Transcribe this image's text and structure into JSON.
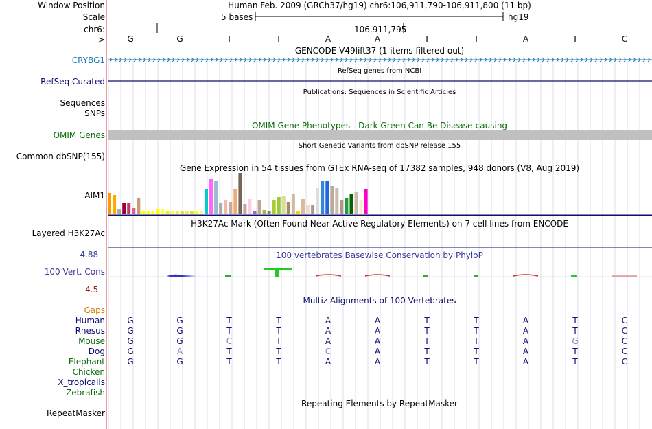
{
  "header": {
    "position_label": "Window Position",
    "assembly_position": "Human Feb. 2009 (GRCh37/hg19)   chr6:106,911,790-106,911,800 (11 bp)",
    "scale_label": "Scale",
    "scale_value": "5 bases",
    "scale_assembly": "hg19",
    "chrom_label": "chr6:",
    "chrom_coord": "106,911,795",
    "strand_label": "--->"
  },
  "bases": [
    "G",
    "G",
    "T",
    "T",
    "A",
    "A",
    "T",
    "T",
    "A",
    "T",
    "C"
  ],
  "tracks": {
    "gencode": {
      "title": "GENCODE V49lift37 (1 items filtered out)",
      "gene_label": "CRYBG1"
    },
    "refseq": {
      "title": "RefSeq genes from NCBI",
      "label": "RefSeq Curated"
    },
    "publications": {
      "title": "Publications: Sequences in Scientific Articles",
      "label1": "Sequences",
      "label2": "SNPs"
    },
    "omim": {
      "title": "OMIM Gene Phenotypes - Dark Green Can Be Disease-causing",
      "label": "OMIM Genes"
    },
    "dbsnp": {
      "title": "Short Genetic Variants from dbSNP release 155",
      "label": "Common dbSNP(155)"
    },
    "gtex": {
      "title": "Gene Expression in 54 tissues from GTEx RNA-seq of 17382 samples, 948 donors (V8, Aug 2019)",
      "label": "AIM1"
    },
    "h3k27ac": {
      "title": "H3K27Ac Mark (Often Found Near Active Regulatory Elements) on 7 cell lines from ENCODE",
      "label": "Layered H3K27Ac"
    },
    "phylop": {
      "title": "100 vertebrates Basewise Conservation by PhyloP",
      "label": "100 Vert. Cons",
      "max": "4.88 _",
      "min": "-4.5 _"
    },
    "multiz": {
      "title": "Multiz Alignments of 100 Vertebrates",
      "gaps_label": "Gaps"
    },
    "repeatmasker": {
      "title": "Repeating Elements by RepeatMasker",
      "label": "RepeatMasker"
    }
  },
  "alignment": [
    {
      "species": "Human",
      "bases": [
        "G",
        "G",
        "T",
        "T",
        "A",
        "A",
        "T",
        "T",
        "A",
        "T",
        "C"
      ]
    },
    {
      "species": "Rhesus",
      "bases": [
        "G",
        "G",
        "T",
        "T",
        "A",
        "A",
        "T",
        "T",
        "A",
        "T",
        "C"
      ]
    },
    {
      "species": "Mouse",
      "bases": [
        "G",
        "G",
        "C",
        "T",
        "A",
        "A",
        "T",
        "T",
        "A",
        "G",
        "C"
      ]
    },
    {
      "species": "Dog",
      "bases": [
        "G",
        "A",
        "T",
        "T",
        "C",
        "A",
        "T",
        "T",
        "A",
        "T",
        "C"
      ]
    },
    {
      "species": "Elephant",
      "bases": [
        "G",
        "G",
        "T",
        "T",
        "A",
        "A",
        "T",
        "T",
        "A",
        "T",
        "C"
      ]
    },
    {
      "species": "Chicken",
      "bases": []
    },
    {
      "species": "X_tropicalis",
      "bases": []
    },
    {
      "species": "Zebrafish",
      "bases": []
    }
  ],
  "chart_data": {
    "type": "bar",
    "title": "Gene Expression in 54 tissues from GTEx RNA-seq of 17382 samples, 948 donors (V8, Aug 2019)",
    "xlabel": "",
    "ylabel": "",
    "ylim": [
      0,
      60
    ],
    "values": [
      31,
      28,
      8,
      16,
      16,
      9,
      24,
      4,
      4,
      4,
      8,
      8,
      4,
      4,
      4,
      4,
      4,
      4,
      4,
      4,
      36,
      51,
      49,
      16,
      20,
      17,
      36,
      60,
      15,
      22,
      4,
      20,
      6,
      4,
      20,
      25,
      26,
      17,
      30,
      5,
      22,
      13,
      14,
      38,
      49,
      49,
      41,
      38,
      20,
      23,
      30,
      33,
      20,
      36
    ],
    "colors": [
      "#ff9900",
      "#ffaa00",
      "#aaaaaa",
      "#990033",
      "#cc3366",
      "#cc6699",
      "#cc9977",
      "#ffff00",
      "#ffff00",
      "#ffff33",
      "#ffff00",
      "#ffff55",
      "#eeee33",
      "#ffff33",
      "#eeee44",
      "#dddd33",
      "#eeee44",
      "#dddd55",
      "#ffff00",
      "#ffff66",
      "#00cccc",
      "#ff66ff",
      "#99bbcc",
      "#aaaaaa",
      "#eebbaa",
      "#ccaa99",
      "#eeaa77",
      "#776655",
      "#bbaa99",
      "#ffccdd",
      "#9966cc",
      "#bbaa99",
      "#99bb44",
      "#888855",
      "#aacc33",
      "#99cc33",
      "#dddd99",
      "#aa8866",
      "#ccbbaa",
      "#ffcc00",
      "#ddbb99",
      "#eeddcc",
      "#aa9988",
      "#dddddd",
      "#3388dd",
      "#2266dd",
      "#bbaa99",
      "#ccbbaa",
      "#aa9988",
      "#229944",
      "#006600",
      "#ccbbaa",
      "#eeeecc",
      "#ff00cc"
    ]
  },
  "colors": {
    "gencode": "#1a79b5",
    "refseq": "#0f0f6e",
    "omim": "#0b6e0b",
    "phylop": "#3a3a9a",
    "phylop_neg": "#8a2020",
    "gaps": "#d48000",
    "grid": "#c8c8d8",
    "separator": "#e8a0a0",
    "omim_bar": "#c0c0c0"
  }
}
